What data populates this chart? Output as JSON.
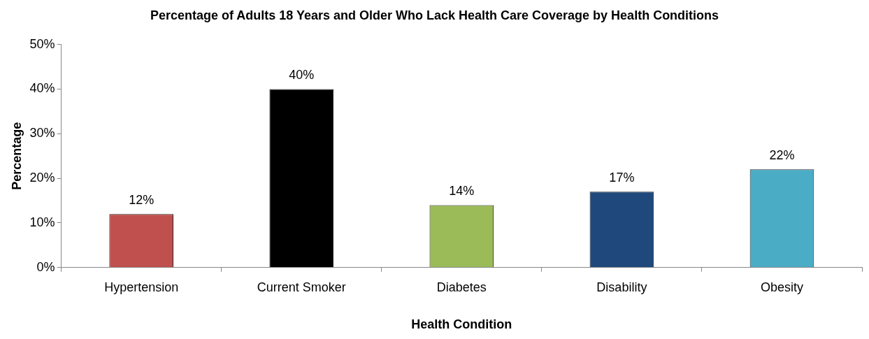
{
  "chart_data": {
    "type": "bar",
    "title": "Percentage of Adults 18 Years and Older Who Lack Health Care Coverage by Health Conditions",
    "xlabel": "Health Condition",
    "ylabel": "Percentage",
    "categories": [
      "Hypertension",
      "Current Smoker",
      "Diabetes",
      "Disability",
      "Obesity"
    ],
    "values": [
      12,
      40,
      14,
      17,
      22
    ],
    "colors": [
      "#c0504d",
      "#000000",
      "#9bbb59",
      "#1f497d",
      "#4bacc6"
    ],
    "value_labels": [
      "12%",
      "40%",
      "14%",
      "17%",
      "22%"
    ],
    "ylim": [
      0,
      50
    ],
    "yticks": [
      {
        "value": 0,
        "label": "0%"
      },
      {
        "value": 10,
        "label": "10%"
      },
      {
        "value": 20,
        "label": "20%"
      },
      {
        "value": 30,
        "label": "30%"
      },
      {
        "value": 40,
        "label": "40%"
      },
      {
        "value": 50,
        "label": "50%"
      }
    ],
    "grid": false,
    "legend": false
  }
}
